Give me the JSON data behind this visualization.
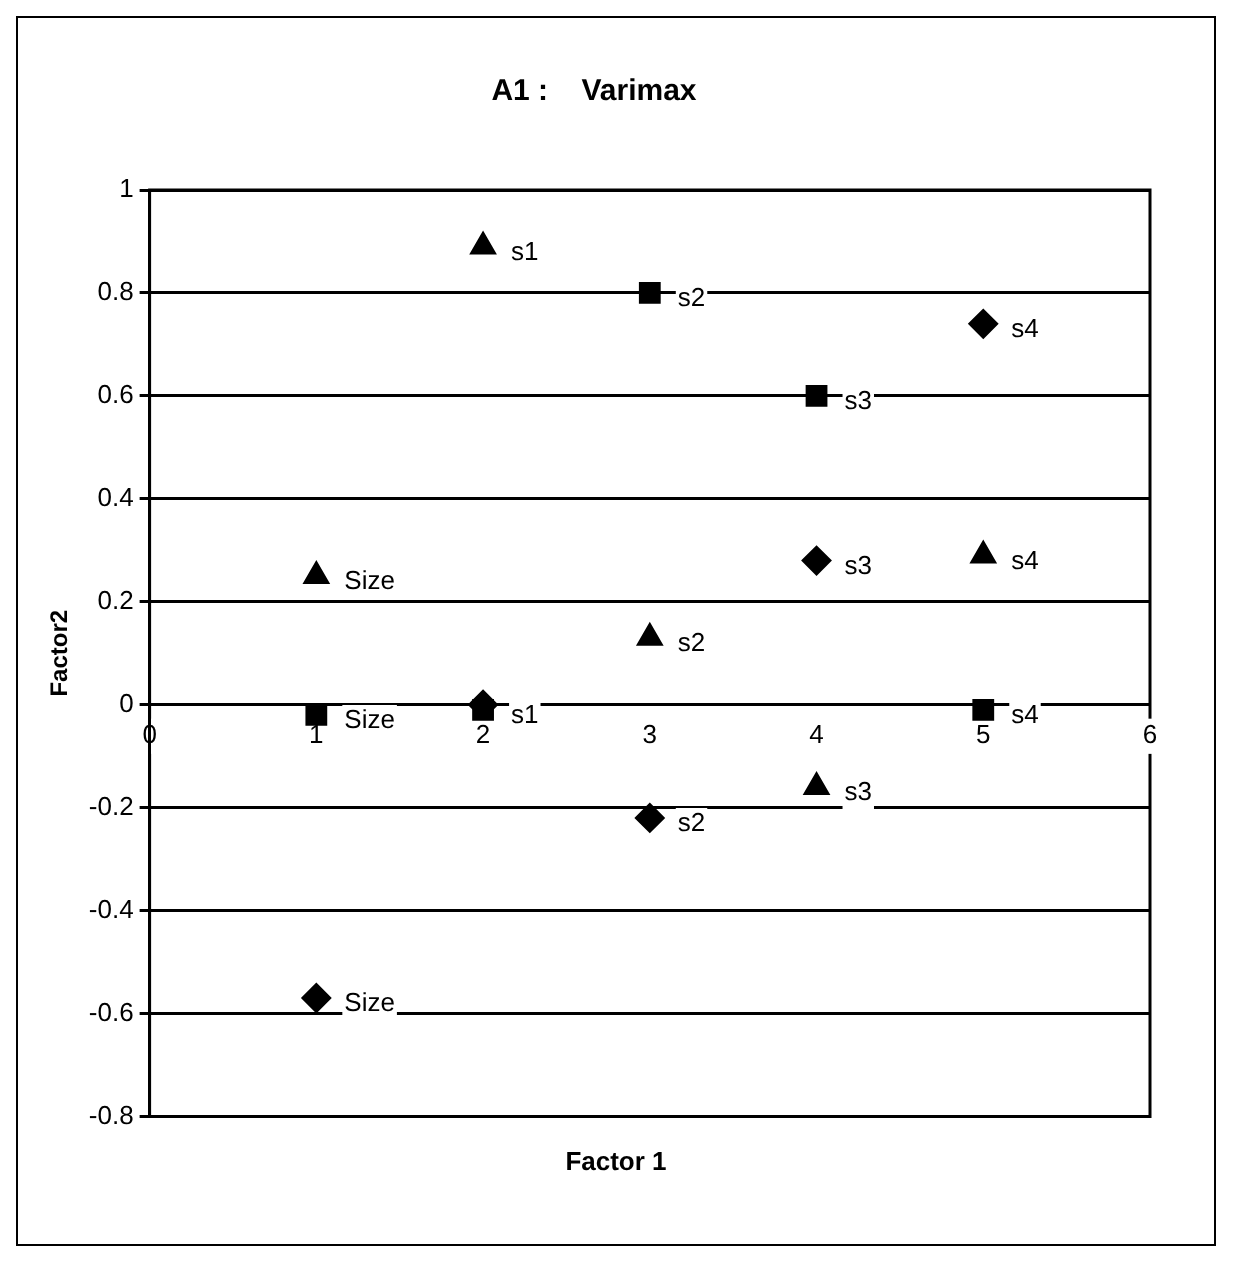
{
  "chart_data": {
    "type": "scatter",
    "title": "A1 :    Varimax",
    "xlabel": "Factor 1",
    "ylabel": "Factor2",
    "xlim": [
      0,
      6
    ],
    "xticks": [
      0,
      1,
      2,
      3,
      4,
      5,
      6
    ],
    "ylim": [
      -0.8,
      1
    ],
    "yticks": [
      -0.8,
      -0.6,
      -0.4,
      -0.2,
      0,
      0.2,
      0.4,
      0.6,
      0.8,
      1
    ],
    "grid": "y",
    "legend": false,
    "series": [
      {
        "marker": "triangle",
        "color": "#000000",
        "x": [
          1,
          2,
          3,
          4,
          5
        ],
        "values": [
          0.25,
          0.89,
          0.13,
          -0.16,
          0.29
        ]
      },
      {
        "marker": "square",
        "color": "#000000",
        "x": [
          1,
          2,
          3,
          4,
          5
        ],
        "values": [
          -0.02,
          -0.01,
          0.8,
          0.6,
          -0.01
        ]
      },
      {
        "marker": "diamond",
        "color": "#000000",
        "x": [
          1,
          2,
          3,
          4,
          5
        ],
        "values": [
          -0.57,
          0.0,
          -0.22,
          0.28,
          0.74
        ]
      }
    ],
    "annotations": [
      {
        "text": "Size",
        "x": 1,
        "y": 0.25
      },
      {
        "text": "s1",
        "x": 2,
        "y": 0.89
      },
      {
        "text": "s2",
        "x": 3,
        "y": 0.13
      },
      {
        "text": "s3",
        "x": 4,
        "y": -0.16
      },
      {
        "text": "s4",
        "x": 5,
        "y": 0.29
      },
      {
        "text": "Size",
        "x": 1,
        "y": -0.02
      },
      {
        "text": "s1",
        "x": 2,
        "y": -0.01
      },
      {
        "text": "s2",
        "x": 3,
        "y": 0.8
      },
      {
        "text": "s3",
        "x": 4,
        "y": 0.6
      },
      {
        "text": "s4",
        "x": 5,
        "y": -0.01
      },
      {
        "text": "Size",
        "x": 1,
        "y": -0.57
      },
      {
        "text": "s2",
        "x": 3,
        "y": -0.22
      },
      {
        "text": "s3",
        "x": 4,
        "y": 0.28
      },
      {
        "text": "s4",
        "x": 5,
        "y": 0.74
      }
    ]
  }
}
